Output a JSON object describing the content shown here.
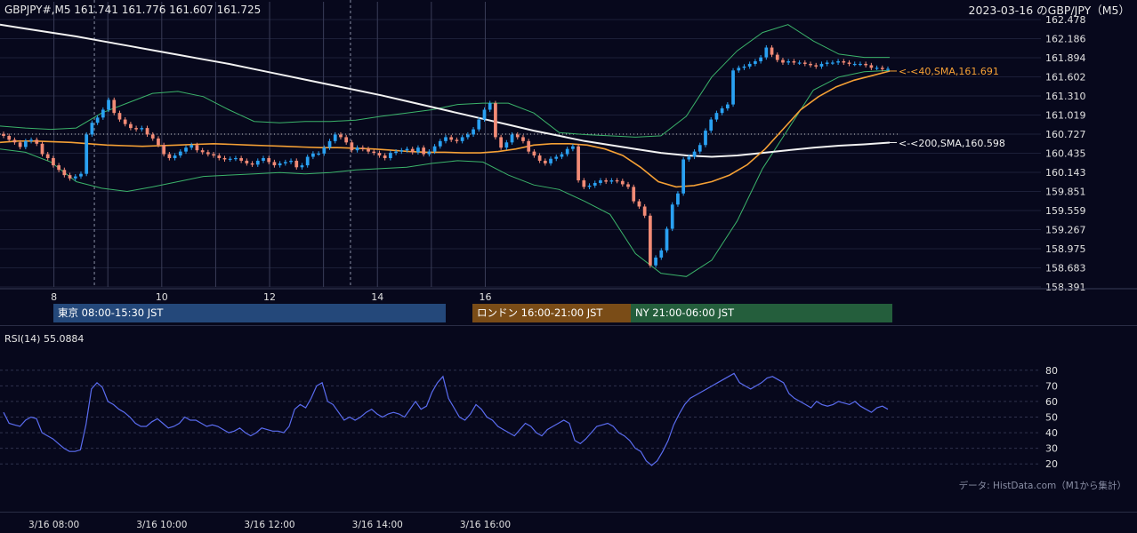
{
  "header": {
    "ohlc_label": "GBPJPY#,M5 161.741 161.776 161.607 161.725",
    "title": "2023-03-16 のGBP/JPY（M5）"
  },
  "colors": {
    "background": "#07081c",
    "bull": "#2aa1f2",
    "bear": "#f28b76",
    "sma40": "#f5a035",
    "sma200": "#f2f2f2",
    "bollinger": "#3bb36a",
    "rsi": "#5a6cf0",
    "tokyo": "#24487a",
    "london": "#7a4c17",
    "newyork": "#245e3c"
  },
  "sessions": [
    {
      "label": "東京 08:00-15:30 JST"
    },
    {
      "label": "ロンドン 16:00-21:00 JST"
    },
    {
      "label": "NY 21:00-06:00 JST"
    }
  ],
  "rsi": {
    "label": "RSI(14) 55.0884"
  },
  "source_note": "データ: HistData.com（M1から集計）",
  "chart_data": [
    {
      "type": "candlestick",
      "title": "2023-03-16 のGBP/JPY（M5）",
      "timeframe": "M5",
      "y_ticks": [
        "162.478",
        "162.186",
        "161.894",
        "161.602",
        "161.310",
        "161.019",
        "160.727",
        "160.435",
        "160.143",
        "159.851",
        "159.559",
        "159.267",
        "158.975",
        "158.683",
        "158.391"
      ],
      "ylim": [
        158.391,
        162.478
      ],
      "x_ticks": [
        "8",
        "10",
        "12",
        "14",
        "16"
      ],
      "x_tick_hours": [
        8,
        10,
        12,
        14,
        16
      ],
      "xlim_hours": [
        7.0,
        23.5
      ],
      "reference_level": 160.727,
      "annotations": [
        {
          "text": "<-<40,SMA,161.691",
          "value": 161.691,
          "series": "SMA40"
        },
        {
          "text": "<-<200,SMA,160.598",
          "value": 160.598,
          "series": "SMA200"
        }
      ],
      "price_close": [
        160.7,
        160.64,
        160.6,
        160.53,
        160.62,
        160.64,
        160.58,
        160.42,
        160.36,
        160.25,
        160.18,
        160.1,
        160.05,
        160.08,
        160.12,
        160.72,
        160.9,
        160.98,
        161.1,
        161.25,
        161.05,
        160.95,
        160.88,
        160.82,
        160.8,
        160.82,
        160.72,
        160.66,
        160.56,
        160.42,
        160.36,
        160.4,
        160.46,
        160.52,
        160.56,
        160.48,
        160.45,
        160.42,
        160.4,
        160.36,
        160.34,
        160.35,
        160.36,
        160.32,
        160.28,
        160.26,
        160.32,
        160.36,
        160.3,
        160.25,
        160.28,
        160.3,
        160.32,
        160.22,
        160.25,
        160.38,
        160.43,
        160.43,
        160.52,
        160.62,
        160.72,
        160.68,
        160.6,
        160.48,
        160.52,
        160.5,
        160.46,
        160.44,
        160.4,
        160.36,
        160.44,
        160.46,
        160.48,
        160.5,
        160.45,
        160.52,
        160.42,
        160.46,
        160.54,
        160.62,
        160.68,
        160.64,
        160.62,
        160.68,
        160.72,
        160.8,
        160.95,
        161.1,
        161.2,
        160.68,
        160.52,
        160.6,
        160.72,
        160.68,
        160.62,
        160.46,
        160.4,
        160.32,
        160.28,
        160.35,
        160.38,
        160.42,
        160.5,
        160.54,
        160.02,
        159.92,
        159.94,
        159.98,
        160.02,
        160.0,
        160.02,
        160.01,
        159.96,
        159.92,
        159.7,
        159.62,
        159.48,
        158.72,
        158.84,
        158.95,
        159.28,
        159.65,
        159.82,
        160.34,
        160.38,
        160.46,
        160.56,
        160.78,
        160.95,
        161.05,
        161.12,
        161.18,
        161.7,
        161.74,
        161.76,
        161.8,
        161.84,
        161.9,
        162.05,
        161.94,
        161.86,
        161.82,
        161.84,
        161.82,
        161.82,
        161.8,
        161.78,
        161.76,
        161.8,
        161.82,
        161.82,
        161.84,
        161.82,
        161.8,
        161.8,
        161.8,
        161.78,
        161.74,
        161.74,
        161.72,
        161.725
      ],
      "series": [
        {
          "name": "SMA40",
          "last_value": 161.691,
          "values": [
            160.6,
            160.62,
            160.62,
            160.61,
            160.6,
            160.58,
            160.56,
            160.55,
            160.54,
            160.55,
            160.56,
            160.57,
            160.58,
            160.57,
            160.56,
            160.55,
            160.54,
            160.53,
            160.52,
            160.52,
            160.51,
            160.5,
            160.48,
            160.46,
            160.45,
            160.45,
            160.44,
            160.44,
            160.46,
            160.5,
            160.56,
            160.58,
            160.58,
            160.56,
            160.5,
            160.4,
            160.22,
            160.0,
            159.92,
            159.94,
            160.0,
            160.1,
            160.26,
            160.5,
            160.8,
            161.1,
            161.3,
            161.45,
            161.55,
            161.62,
            161.691
          ]
        },
        {
          "name": "SMA200",
          "last_value": 160.598,
          "values": [
            162.4,
            162.34,
            162.28,
            162.22,
            162.15,
            162.08,
            162.01,
            161.94,
            161.87,
            161.8,
            161.72,
            161.64,
            161.56,
            161.48,
            161.4,
            161.32,
            161.23,
            161.14,
            161.05,
            160.96,
            160.87,
            160.78,
            160.7,
            160.62,
            160.56,
            160.5,
            160.44,
            160.4,
            160.38,
            160.4,
            160.44,
            160.48,
            160.52,
            160.55,
            160.57,
            160.598
          ]
        },
        {
          "name": "Bollinger upper",
          "values": [
            160.85,
            160.82,
            160.8,
            160.82,
            161.05,
            161.2,
            161.35,
            161.38,
            161.3,
            161.1,
            160.92,
            160.9,
            160.92,
            160.92,
            160.94,
            161.0,
            161.05,
            161.1,
            161.18,
            161.2,
            161.2,
            161.05,
            160.75,
            160.72,
            160.7,
            160.68,
            160.7,
            161.0,
            161.6,
            162.0,
            162.28,
            162.4,
            162.15,
            161.95,
            161.9,
            161.9
          ]
        },
        {
          "name": "Bollinger lower",
          "values": [
            160.5,
            160.45,
            160.3,
            160.0,
            159.9,
            159.85,
            159.92,
            160.0,
            160.08,
            160.1,
            160.12,
            160.14,
            160.12,
            160.14,
            160.18,
            160.2,
            160.22,
            160.28,
            160.32,
            160.3,
            160.1,
            159.95,
            159.88,
            159.7,
            159.5,
            158.9,
            158.6,
            158.55,
            158.8,
            159.4,
            160.2,
            160.8,
            161.4,
            161.6,
            161.68,
            161.7
          ]
        }
      ]
    },
    {
      "type": "line",
      "title": "RSI(14) 55.0884",
      "y_ticks": [
        "80",
        "70",
        "60",
        "50",
        "40",
        "30",
        "20"
      ],
      "ylim": [
        15,
        85
      ],
      "x_tick_labels": [
        "3/16 08:00",
        "3/16 10:00",
        "3/16 12:00",
        "3/16 14:00",
        "3/16 16:00"
      ],
      "x_tick_hours": [
        8,
        10,
        12,
        14,
        16
      ],
      "series": [
        {
          "name": "RSI(14)",
          "last_value": 55.0884,
          "values": [
            53,
            46,
            45,
            44,
            48,
            50,
            49,
            40,
            38,
            36,
            33,
            30,
            28,
            28,
            29,
            45,
            68,
            72,
            69,
            60,
            58,
            55,
            53,
            50,
            46,
            44,
            44,
            47,
            49,
            46,
            43,
            44,
            46,
            50,
            48,
            48,
            46,
            44,
            45,
            44,
            42,
            40,
            41,
            43,
            40,
            38,
            40,
            43,
            42,
            41,
            41,
            40,
            44,
            55,
            58,
            56,
            62,
            70,
            72,
            60,
            58,
            53,
            48,
            50,
            48,
            50,
            53,
            55,
            52,
            50,
            52,
            53,
            52,
            50,
            55,
            60,
            55,
            57,
            66,
            72,
            76,
            62,
            56,
            50,
            48,
            52,
            58,
            55,
            50,
            48,
            44,
            42,
            40,
            38,
            42,
            46,
            44,
            40,
            38,
            42,
            44,
            46,
            48,
            46,
            35,
            33,
            36,
            40,
            44,
            45,
            46,
            44,
            40,
            38,
            35,
            30,
            28,
            22,
            19,
            22,
            28,
            35,
            45,
            52,
            58,
            62,
            64,
            66,
            68,
            70,
            72,
            74,
            76,
            78,
            72,
            70,
            68,
            70,
            72,
            75,
            76,
            74,
            72,
            65,
            62,
            60,
            58,
            56,
            60,
            58,
            57,
            58,
            60,
            59,
            58,
            60,
            57,
            55,
            53,
            56,
            57,
            55
          ]
        }
      ]
    }
  ]
}
